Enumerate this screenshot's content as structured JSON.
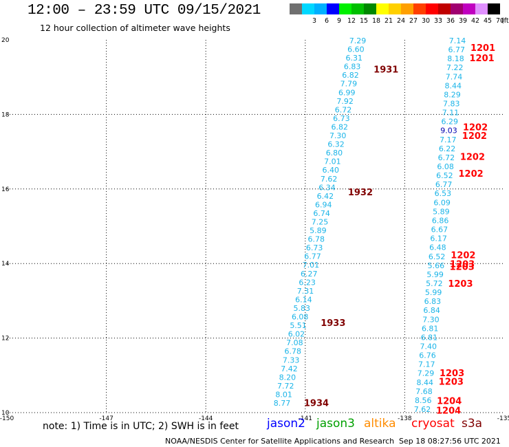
{
  "header": {
    "title": "12:00 – 23:59 UTC 09/15/2021",
    "subtitle": "12 hour collection of altimeter wave heights"
  },
  "legend": {
    "unit_label": "(ft)",
    "levels": [
      {
        "label": "",
        "color": "#707070"
      },
      {
        "label": "3",
        "color": "#00d8ff"
      },
      {
        "label": "6",
        "color": "#00b0ff"
      },
      {
        "label": "9",
        "color": "#0000ff"
      },
      {
        "label": "12",
        "color": "#00f000"
      },
      {
        "label": "15",
        "color": "#00c000"
      },
      {
        "label": "18",
        "color": "#008800"
      },
      {
        "label": "21",
        "color": "#ffff00"
      },
      {
        "label": "24",
        "color": "#ffd000"
      },
      {
        "label": "27",
        "color": "#ffa000"
      },
      {
        "label": "30",
        "color": "#ff4000"
      },
      {
        "label": "33",
        "color": "#ff0000"
      },
      {
        "label": "36",
        "color": "#c00000"
      },
      {
        "label": "39",
        "color": "#a00070"
      },
      {
        "label": "42",
        "color": "#c000c0"
      },
      {
        "label": "45",
        "color": "#e090ff"
      },
      {
        "label": "70",
        "color": "#000000"
      }
    ]
  },
  "map": {
    "lon_range": [
      -150,
      -135
    ],
    "lat_range": [
      10,
      20
    ],
    "lon_ticks": [
      "-150",
      "-147",
      "-144",
      "-141",
      "-138",
      "-135"
    ],
    "lat_ticks": [
      "10",
      "12",
      "14",
      "16",
      "18",
      "20"
    ],
    "point_color": "#1ab4e8",
    "dark_point_color": "#0000b0",
    "track_color_dark": "#800000",
    "track_color_red": "#ff0000",
    "left_track": {
      "values": [
        "7.29",
        "6.60",
        "6.31",
        "6.83",
        "6.82",
        "7.79",
        "6.99",
        "7.92",
        "6.72",
        "6.73",
        "6.82",
        "7.30",
        "6.32",
        "6.80",
        "7.01",
        "6.40",
        "7.62",
        "6.34",
        "6.42",
        "6.94",
        "6.74",
        "7.25",
        "5.89",
        "6.78",
        "6.73",
        "6.77",
        "7.01",
        "6.27",
        "6.23",
        "7.31",
        "6.14",
        "5.83",
        "6.08",
        "5.51",
        "6.02",
        "7.08",
        "6.78",
        "7.33",
        "7.42",
        "8.20",
        "7.72",
        "8.01",
        "8.77"
      ],
      "labels": [
        {
          "text": "1931",
          "lat": 19.2
        },
        {
          "text": "1932",
          "lat": 15.9
        },
        {
          "text": "1933",
          "lat": 12.4
        },
        {
          "text": "1934",
          "lat": 10.25
        }
      ]
    },
    "right_track": {
      "values": [
        "7.14",
        "6.77",
        "8.18",
        "7.22",
        "7.74",
        "8.44",
        "8.29",
        "7.83",
        "7.11",
        "6.29",
        "9.03",
        "7.17",
        "6.22",
        "6.72",
        "6.08",
        "6.52",
        "6.77",
        "6.53",
        "6.09",
        "5.89",
        "6.86",
        "6.67",
        "6.17",
        "6.48",
        "6.52",
        "5.66",
        "5.99",
        "5.72",
        "5.99",
        "6.83",
        "6.84",
        "7.30",
        "6.81",
        "6.81",
        "7.40",
        "6.76",
        "7.17",
        "7.29",
        "8.44",
        "7.68",
        "8.56",
        "7.62"
      ],
      "labels": [
        {
          "text": "1201",
          "lat": 19.78
        },
        {
          "text": "1201",
          "lat": 19.5
        },
        {
          "text": "1202",
          "lat": 17.65
        },
        {
          "text": "1202",
          "lat": 17.42
        },
        {
          "text": "1202",
          "lat": 16.85
        },
        {
          "text": "1202",
          "lat": 16.4
        },
        {
          "text": "1202",
          "lat": 14.22
        },
        {
          "text": "1203",
          "lat": 13.98
        },
        {
          "text": "1203",
          "lat": 13.9
        },
        {
          "text": "1203",
          "lat": 13.45
        },
        {
          "text": "1203",
          "lat": 11.05
        },
        {
          "text": "1203",
          "lat": 10.82
        },
        {
          "text": "1204",
          "lat": 10.3
        },
        {
          "text": "1204",
          "lat": 10.05
        }
      ]
    }
  },
  "footer": {
    "note": "note:  1) Time is in UTC;  2) SWH is in feet",
    "satellites": [
      {
        "name": "jason2",
        "color": "#0000ff"
      },
      {
        "name": "jason3",
        "color": "#00a000"
      },
      {
        "name": "altika",
        "color": "#ff8c00"
      },
      {
        "name": "cryosat",
        "color": "#ff0000"
      },
      {
        "name": "s3a",
        "color": "#800000"
      }
    ],
    "credit": "NOAA/NESDIS Center for Satellite Applications and Research",
    "timestamp": "Sep 18 08:27:56 UTC 2021"
  }
}
